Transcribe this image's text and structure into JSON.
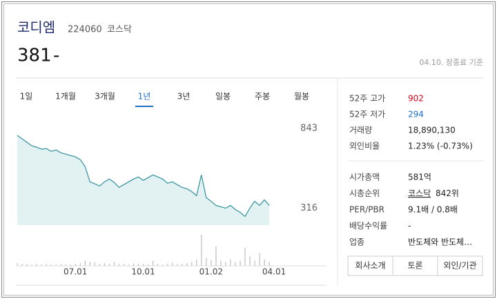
{
  "header": {
    "name": "코디엠",
    "code": "224060",
    "market": "코스닥",
    "price": "381",
    "change": "-",
    "basis": "04.10. 장종료 기준"
  },
  "tabs": [
    "1일",
    "1개월",
    "3개월",
    "1년",
    "3년",
    "일봉",
    "주봉",
    "월봉"
  ],
  "active_tab": 3,
  "chart_data": [
    {
      "type": "area",
      "color": "#2f8f9c",
      "fill": "#e2f2f2",
      "values": [
        843,
        820,
        798,
        775,
        766,
        753,
        757,
        739,
        748,
        730,
        721,
        712,
        703,
        685,
        640,
        541,
        528,
        514,
        541,
        559,
        537,
        505,
        523,
        541,
        559,
        573,
        550,
        568,
        586,
        573,
        559,
        532,
        541,
        523,
        505,
        496,
        478,
        451,
        586,
        438,
        415,
        388,
        379,
        370,
        388,
        361,
        343,
        316,
        370,
        415,
        388,
        424,
        388,
        null
      ],
      "ylim": [
        260,
        910
      ],
      "yticks": [
        843,
        316
      ]
    },
    {
      "type": "bar",
      "color": "#bbbbbb",
      "categories": [
        null,
        null,
        null,
        null,
        null,
        null,
        null,
        null,
        null,
        null,
        null,
        null,
        "07.01",
        null,
        null,
        null,
        null,
        null,
        null,
        null,
        null,
        null,
        null,
        null,
        null,
        null,
        "10.01",
        null,
        null,
        null,
        null,
        null,
        null,
        null,
        null,
        null,
        null,
        null,
        null,
        null,
        "01.02",
        null,
        null,
        null,
        null,
        null,
        null,
        null,
        null,
        null,
        null,
        null,
        null,
        "04.01"
      ],
      "values": [
        4,
        3,
        3,
        2,
        3,
        2,
        3,
        2,
        2,
        3,
        2,
        2,
        3,
        4,
        8,
        6,
        5,
        3,
        4,
        3,
        6,
        3,
        3,
        2,
        4,
        3,
        3,
        2,
        8,
        3,
        2,
        3,
        5,
        3,
        3,
        4,
        6,
        10,
        48,
        12,
        9,
        30,
        8,
        6,
        10,
        6,
        8,
        28,
        15,
        8,
        20,
        10,
        6,
        null
      ],
      "ylim": [
        0,
        50
      ]
    }
  ],
  "stats": [
    {
      "label": "52주 고가",
      "value": "902",
      "color": "#d0021b"
    },
    {
      "label": "52주 저가",
      "value": "294",
      "color": "#1a6fc9"
    },
    {
      "label": "거래량",
      "value": "18,890,130"
    },
    {
      "label": "외인비율",
      "value": "1.23% (-0.73%)"
    },
    {
      "label": "시가총액",
      "value": "581억"
    },
    {
      "label": "시총순위",
      "link": "코스닥",
      "value": "842위"
    },
    {
      "label": "PER/PBR",
      "value": "9.1배 / 0.8배"
    },
    {
      "label": "배당수익률",
      "value": "-"
    },
    {
      "label": "업종",
      "value": "반도체와 반도체…"
    }
  ],
  "buttons": [
    "회사소개",
    "토론",
    "외인/기관"
  ]
}
